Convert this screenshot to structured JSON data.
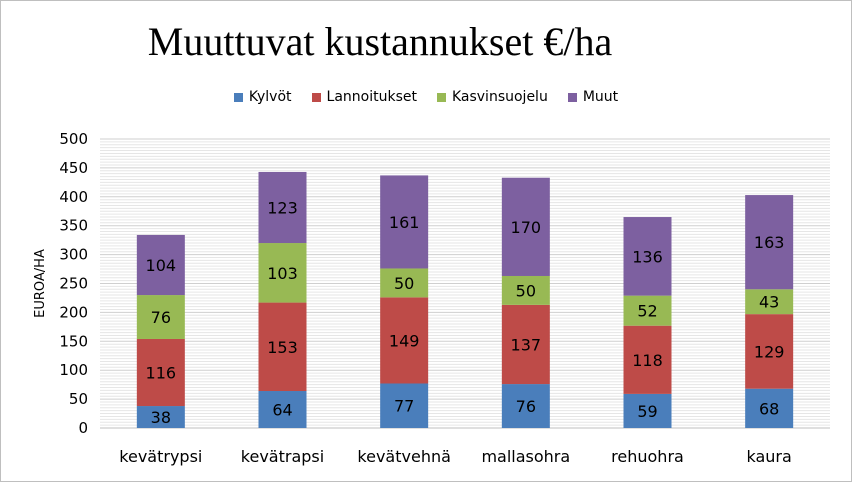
{
  "chart_data": {
    "type": "bar",
    "stacked": true,
    "title": "Muuttuvat kustannukset €/ha",
    "ylabel": "EUROA/HA",
    "xlabel": "",
    "ylim": [
      0,
      500
    ],
    "ytick_step": 50,
    "grid": true,
    "legend_position": "top",
    "categories": [
      "kevätrypsi",
      "kevätrapsi",
      "kevätvehnä",
      "mallasohra",
      "rehuohra",
      "kaura"
    ],
    "series": [
      {
        "name": "Kylvöt",
        "color": "#4a7ebb",
        "values": [
          38,
          64,
          77,
          76,
          59,
          68
        ]
      },
      {
        "name": "Lannoitukset",
        "color": "#be4b48",
        "values": [
          116,
          153,
          149,
          137,
          118,
          129
        ]
      },
      {
        "name": "Kasvinsuojelu",
        "color": "#98b954",
        "values": [
          76,
          103,
          50,
          50,
          52,
          43
        ]
      },
      {
        "name": "Muut",
        "color": "#7d60a0",
        "values": [
          104,
          123,
          161,
          170,
          136,
          163
        ]
      }
    ]
  }
}
